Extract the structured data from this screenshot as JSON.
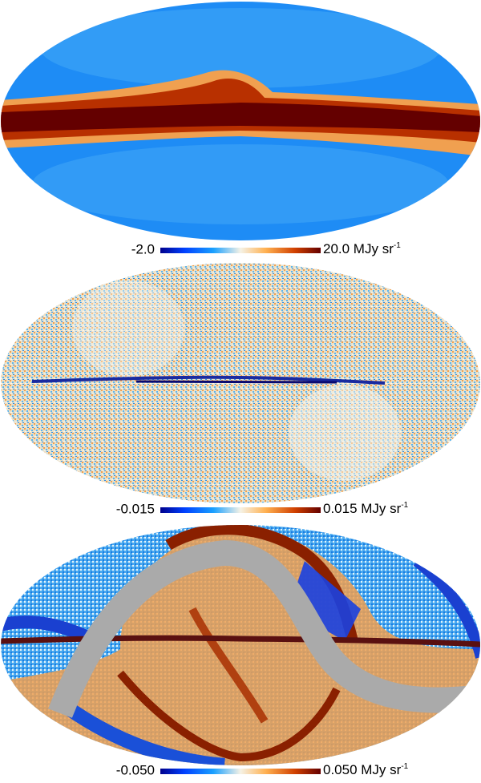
{
  "panels": [
    {
      "colorbar": {
        "min_label": "-2.0",
        "max_label": "20.0 MJy sr",
        "exponent": "-1"
      }
    },
    {
      "colorbar": {
        "min_label": "-0.015",
        "max_label": "0.015 MJy sr",
        "exponent": "-1"
      }
    },
    {
      "colorbar": {
        "min_label": "-0.050",
        "max_label": "0.050 MJy sr",
        "exponent": "-1"
      }
    }
  ]
}
